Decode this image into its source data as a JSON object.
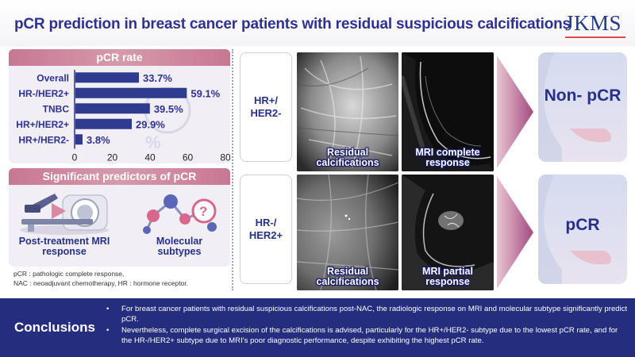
{
  "header": {
    "title": "pCR prediction in breast cancer patients with residual suspicious calcifications",
    "logo": "JKMS"
  },
  "pcr_panel": {
    "heading": "pCR rate"
  },
  "chart_data": {
    "type": "bar",
    "orientation": "horizontal",
    "title": "pCR rate",
    "categories": [
      "Overall",
      "HR-/HER2+",
      "TNBC",
      "HR+/HER2+",
      "HR+/HER2-"
    ],
    "values": [
      33.7,
      59.1,
      39.5,
      29.9,
      3.8
    ],
    "value_labels": [
      "33.7%",
      "59.1%",
      "39.5%",
      "29.9%",
      "3.8%"
    ],
    "xlim": [
      0,
      80
    ],
    "xticks": [
      0,
      20,
      40,
      60,
      80
    ],
    "xlabel": "",
    "ylabel": ""
  },
  "predictors_panel": {
    "heading": "Significant predictors of pCR",
    "items": [
      {
        "label": "Post-treatment MRI response"
      },
      {
        "label": "Molecular subtypes"
      }
    ]
  },
  "footnote": {
    "line1": "pCR : pathologic complete response,",
    "line2": "NAC : neoadjuvant chemotherapy, HR : hormone receptor."
  },
  "rows": [
    {
      "subtype": "HR+/ HER2-",
      "image1_caption": "Residual calcifications",
      "image2_caption": "MRI complete response",
      "outcome": "Non- pCR"
    },
    {
      "subtype": "HR-/ HER2+",
      "image1_caption": "Residual calcifications",
      "image2_caption": "MRI partial response",
      "outcome": "pCR"
    }
  ],
  "conclusions": {
    "title": "Conclusions",
    "bullet": "•",
    "points": [
      "For breast cancer patients with residual suspicious calcifications post-NAC, the radiologic response on MRI and molecular subtype significantly predict pCR.",
      "Nevertheless, complete surgical excision of the calcifications is advised, particularly for the HR+/HER2- subtype due to the lowest pCR rate, and for the HR-/HER2+ subtype due to MRI's poor diagnostic performance, despite exhibiting the highest pCR rate."
    ]
  },
  "colors": {
    "navy": "#2e3192",
    "bar": "#2f3b8f",
    "panel_head": "#c87792",
    "conclusions_bg": "#252e7e"
  }
}
